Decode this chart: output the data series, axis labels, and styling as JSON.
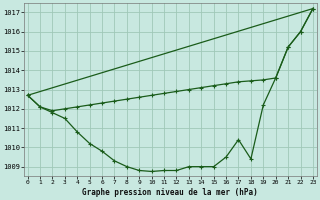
{
  "xlabel": "Graphe pression niveau de la mer (hPa)",
  "bg_color": "#c8e8e0",
  "grid_color": "#a0c8b8",
  "line_color": "#1a5c1a",
  "ylim": [
    1008.5,
    1017.5
  ],
  "xlim": [
    -0.3,
    23.3
  ],
  "yticks": [
    1009,
    1010,
    1011,
    1012,
    1013,
    1014,
    1015,
    1016,
    1017
  ],
  "xticks": [
    0,
    1,
    2,
    3,
    4,
    5,
    6,
    7,
    8,
    9,
    10,
    11,
    12,
    13,
    14,
    15,
    16,
    17,
    18,
    19,
    20,
    21,
    22,
    23
  ],
  "line_curve": {
    "x": [
      0,
      1,
      2,
      3,
      4,
      5,
      6,
      7,
      8,
      9,
      10,
      11,
      12,
      13,
      14,
      15,
      16,
      17,
      18,
      19,
      20,
      21,
      22,
      23
    ],
    "y": [
      1012.7,
      1012.1,
      1011.8,
      1011.5,
      1010.8,
      1010.2,
      1009.8,
      1009.3,
      1009.0,
      1008.8,
      1008.75,
      1008.8,
      1008.8,
      1009.0,
      1009.0,
      1009.0,
      1009.5,
      1010.4,
      1009.4,
      1012.2,
      1013.6,
      1015.2,
      1016.0,
      1017.2
    ]
  },
  "line_mid": {
    "x": [
      0,
      1,
      2,
      3,
      4,
      5,
      6,
      7,
      8,
      9,
      10,
      11,
      12,
      13,
      14,
      15,
      16,
      17,
      18,
      19,
      20,
      21,
      22,
      23
    ],
    "y": [
      1012.7,
      1012.1,
      1011.9,
      1012.0,
      1012.1,
      1012.2,
      1012.3,
      1012.4,
      1012.5,
      1012.6,
      1012.7,
      1012.8,
      1012.9,
      1013.0,
      1013.1,
      1013.2,
      1013.3,
      1013.4,
      1013.45,
      1013.5,
      1013.6,
      1015.2,
      1016.0,
      1017.2
    ]
  },
  "line_straight": {
    "x": [
      0,
      23
    ],
    "y": [
      1012.7,
      1017.2
    ]
  }
}
